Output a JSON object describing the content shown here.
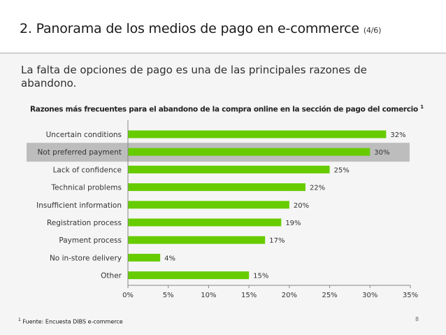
{
  "header": {
    "title": "2. Panorama de los medios de pago en e-commerce",
    "page_indicator": "(4/6)"
  },
  "subtitle": "La falta de opciones de pago es una de las principales razones de abandono.",
  "footnote": {
    "marker": "1",
    "text": "Fuente: Encuesta DIBS e-commerce"
  },
  "page_number": "8",
  "colors": {
    "bar": "#66cc00",
    "highlight_row": "#bdbdbd",
    "content_bg": "#f5f5f5"
  },
  "chart_data": {
    "type": "bar",
    "orientation": "horizontal",
    "title": "Razones más frecuentes para el abandono de la compra online en la sección de pago del comercio",
    "title_marker": "1",
    "categories": [
      "Uncertain conditions",
      "Not preferred payment",
      "Lack of confidence",
      "Technical problems",
      "Insufficient information",
      "Registration process",
      "Payment process",
      "No in-store delivery",
      "Other"
    ],
    "values": [
      32,
      30,
      25,
      22,
      20,
      19,
      17,
      4,
      15
    ],
    "value_labels": [
      "32%",
      "30%",
      "25%",
      "22%",
      "20%",
      "19%",
      "17%",
      "4%",
      "15%"
    ],
    "highlighted_category": "Not preferred payment",
    "xlim": [
      0,
      35
    ],
    "xticks": [
      0,
      5,
      10,
      15,
      20,
      25,
      30,
      35
    ],
    "xtick_labels": [
      "0%",
      "5%",
      "10%",
      "15%",
      "20%",
      "25%",
      "30%",
      "35%"
    ],
    "grid": false,
    "legend": "none"
  }
}
